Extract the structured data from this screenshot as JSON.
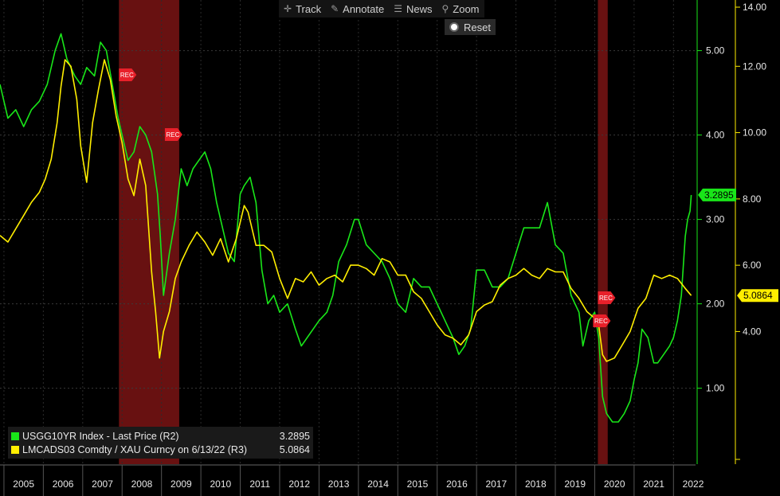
{
  "toolbar": {
    "track_label": "Track",
    "annotate_label": "Annotate",
    "news_label": "News",
    "zoom_label": "Zoom",
    "reset_label": "Reset"
  },
  "legend": {
    "green_name": "USGG10YR Index - Last Price (R2)",
    "green_value": "3.2895",
    "yellow_name": "LMCADS03 Comdty / XAU Curncy on 6/13/22 (R3)",
    "yellow_value": "5.0864"
  },
  "colors": {
    "green": "#19e619",
    "yellow": "#ffee00",
    "recession": "#7a1414",
    "recession_marker": "#e8202a",
    "background": "#000000",
    "axis_text": "#e6e6e6"
  },
  "chart_data": {
    "type": "line",
    "x_range": [
      2004.9,
      2022.56
    ],
    "x_tick_labels": [
      "2005",
      "2006",
      "2007",
      "2008",
      "2009",
      "2010",
      "2011",
      "2012",
      "2013",
      "2014",
      "2015",
      "2016",
      "2017",
      "2018",
      "2019",
      "2020",
      "2021",
      "2022"
    ],
    "recessions": [
      {
        "start": 2007.92,
        "end": 2009.45,
        "label": "REC"
      },
      {
        "start": 2020.08,
        "end": 2020.33,
        "label": "REC"
      }
    ],
    "recession_labels": [
      "REC",
      "REC",
      "REC",
      "REC"
    ],
    "right_axis_r2": {
      "range": [
        0.1,
        5.6
      ],
      "ticks": [
        1.0,
        2.0,
        3.0,
        4.0,
        5.0
      ],
      "tick_labels": [
        "1.00",
        "2.00",
        "3.00",
        "4.00",
        "5.00"
      ]
    },
    "right_axis_r3": {
      "range": [
        0.0,
        14.0
      ],
      "ticks": [
        4,
        6,
        8,
        10,
        12,
        14
      ],
      "tick_labels": [
        "4.00",
        "6.00",
        "8.00",
        "10.00",
        "12.00",
        "14.00"
      ]
    },
    "series": [
      {
        "name": "USGG10YR Index - Last Price (R2)",
        "axis": "R2",
        "color": "#19e619",
        "last_value_label": "3.2895",
        "x": [
          2004.9,
          2005.1,
          2005.3,
          2005.5,
          2005.7,
          2005.9,
          2006.1,
          2006.3,
          2006.45,
          2006.6,
          2006.8,
          2006.95,
          2007.1,
          2007.3,
          2007.45,
          2007.6,
          2007.75,
          2007.9,
          2008.0,
          2008.15,
          2008.3,
          2008.45,
          2008.6,
          2008.75,
          2008.9,
          2008.97,
          2009.05,
          2009.2,
          2009.35,
          2009.5,
          2009.65,
          2009.8,
          2009.95,
          2010.1,
          2010.25,
          2010.4,
          2010.55,
          2010.7,
          2010.85,
          2011.0,
          2011.1,
          2011.25,
          2011.4,
          2011.55,
          2011.7,
          2011.85,
          2012.0,
          2012.2,
          2012.4,
          2012.55,
          2012.7,
          2012.85,
          2013.0,
          2013.2,
          2013.35,
          2013.5,
          2013.7,
          2013.9,
          2014.0,
          2014.2,
          2014.4,
          2014.6,
          2014.8,
          2015.0,
          2015.2,
          2015.4,
          2015.6,
          2015.8,
          2016.0,
          2016.2,
          2016.4,
          2016.55,
          2016.7,
          2016.85,
          2017.0,
          2017.2,
          2017.4,
          2017.6,
          2017.8,
          2018.0,
          2018.2,
          2018.4,
          2018.6,
          2018.8,
          2019.0,
          2019.2,
          2019.4,
          2019.6,
          2019.7,
          2019.85,
          2020.0,
          2020.1,
          2020.2,
          2020.3,
          2020.45,
          2020.6,
          2020.75,
          2020.9,
          2021.0,
          2021.1,
          2021.2,
          2021.35,
          2021.5,
          2021.6,
          2021.75,
          2021.9,
          2022.0,
          2022.1,
          2022.2,
          2022.3,
          2022.36,
          2022.42,
          2022.45
        ],
        "y": [
          4.6,
          4.2,
          4.3,
          4.1,
          4.3,
          4.4,
          4.6,
          5.0,
          5.2,
          4.9,
          4.7,
          4.6,
          4.8,
          4.7,
          5.1,
          5.0,
          4.6,
          4.2,
          4.0,
          3.7,
          3.8,
          4.1,
          4.0,
          3.8,
          3.3,
          2.8,
          2.1,
          2.6,
          3.0,
          3.6,
          3.4,
          3.6,
          3.7,
          3.8,
          3.6,
          3.2,
          2.9,
          2.6,
          2.5,
          3.3,
          3.4,
          3.5,
          3.2,
          2.4,
          2.0,
          2.1,
          1.9,
          2.0,
          1.7,
          1.5,
          1.6,
          1.7,
          1.8,
          1.9,
          2.1,
          2.5,
          2.7,
          3.0,
          3.0,
          2.7,
          2.6,
          2.5,
          2.3,
          2.0,
          1.9,
          2.3,
          2.2,
          2.2,
          2.0,
          1.8,
          1.6,
          1.4,
          1.5,
          1.7,
          2.4,
          2.4,
          2.2,
          2.2,
          2.3,
          2.6,
          2.9,
          2.9,
          2.9,
          3.2,
          2.7,
          2.6,
          2.1,
          1.9,
          1.5,
          1.8,
          1.9,
          1.6,
          0.9,
          0.7,
          0.6,
          0.6,
          0.7,
          0.85,
          1.1,
          1.3,
          1.7,
          1.6,
          1.3,
          1.3,
          1.4,
          1.5,
          1.6,
          1.8,
          2.1,
          2.8,
          3.0,
          3.1,
          3.2895
        ]
      },
      {
        "name": "LMCADS03 Comdty / XAU Curncy on 6/13/22 (R3)",
        "axis": "R3",
        "color": "#ffee00",
        "last_value_label": "5.0864",
        "x": [
          2004.9,
          2005.1,
          2005.3,
          2005.5,
          2005.7,
          2005.9,
          2006.05,
          2006.2,
          2006.35,
          2006.45,
          2006.55,
          2006.7,
          2006.85,
          2006.95,
          2007.1,
          2007.25,
          2007.4,
          2007.55,
          2007.7,
          2007.85,
          2008.0,
          2008.15,
          2008.3,
          2008.45,
          2008.6,
          2008.75,
          2008.85,
          2008.95,
          2009.05,
          2009.2,
          2009.35,
          2009.5,
          2009.7,
          2009.9,
          2010.1,
          2010.3,
          2010.5,
          2010.7,
          2010.9,
          2011.1,
          2011.2,
          2011.4,
          2011.6,
          2011.8,
          2012.0,
          2012.2,
          2012.4,
          2012.6,
          2012.8,
          2013.0,
          2013.2,
          2013.4,
          2013.6,
          2013.8,
          2014.0,
          2014.2,
          2014.4,
          2014.6,
          2014.8,
          2015.0,
          2015.2,
          2015.4,
          2015.6,
          2015.8,
          2016.0,
          2016.2,
          2016.4,
          2016.6,
          2016.8,
          2017.0,
          2017.2,
          2017.4,
          2017.6,
          2017.8,
          2018.0,
          2018.2,
          2018.4,
          2018.6,
          2018.8,
          2019.0,
          2019.2,
          2019.4,
          2019.6,
          2019.8,
          2020.0,
          2020.1,
          2020.2,
          2020.3,
          2020.5,
          2020.7,
          2020.9,
          2021.1,
          2021.3,
          2021.5,
          2021.7,
          2021.9,
          2022.1,
          2022.3,
          2022.45
        ],
        "y": [
          6.9,
          6.7,
          7.1,
          7.5,
          7.9,
          8.2,
          8.6,
          9.2,
          10.3,
          11.4,
          12.2,
          12.0,
          11.0,
          9.6,
          8.5,
          10.3,
          11.3,
          12.2,
          11.6,
          10.5,
          9.7,
          8.6,
          8.1,
          9.2,
          8.4,
          5.8,
          4.6,
          3.2,
          4.0,
          4.6,
          5.6,
          6.1,
          6.6,
          7.0,
          6.7,
          6.3,
          6.8,
          6.1,
          6.8,
          7.8,
          7.6,
          6.6,
          6.6,
          6.4,
          5.6,
          5.0,
          5.6,
          5.5,
          5.8,
          5.4,
          5.6,
          5.7,
          5.5,
          6.0,
          6.0,
          5.9,
          5.7,
          6.2,
          6.1,
          5.7,
          5.7,
          5.2,
          5.0,
          4.6,
          4.2,
          3.9,
          3.8,
          3.6,
          3.9,
          4.6,
          4.8,
          4.9,
          5.4,
          5.6,
          5.7,
          5.9,
          5.7,
          5.6,
          5.9,
          5.8,
          5.8,
          5.3,
          5.0,
          4.6,
          4.4,
          4.2,
          3.3,
          3.1,
          3.2,
          3.6,
          4.0,
          4.7,
          5.0,
          5.7,
          5.6,
          5.7,
          5.6,
          5.3,
          5.0864
        ]
      }
    ]
  }
}
